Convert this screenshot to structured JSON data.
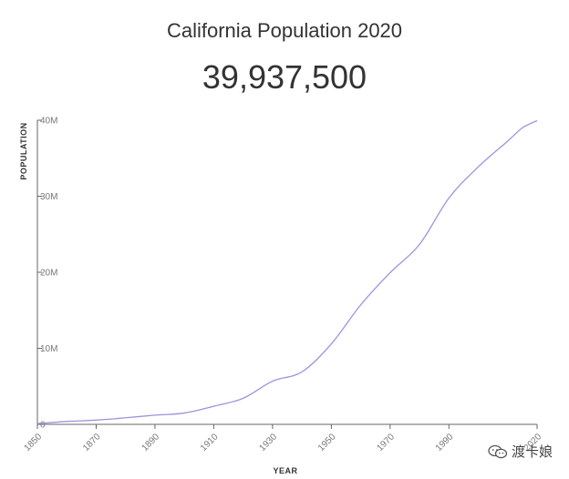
{
  "header": {
    "title": "California Population 2020",
    "value": "39,937,500"
  },
  "watermark": {
    "icon": "wechat-icon",
    "text": "渡卡娘"
  },
  "colors": {
    "line": "#9b93e0",
    "axis": "#666666"
  },
  "chart_data": {
    "type": "line",
    "title": "California Population 2020",
    "xlabel": "YEAR",
    "ylabel": "POPULATION",
    "xlim": [
      1850,
      2020
    ],
    "ylim": [
      0,
      40000000
    ],
    "x_ticks": [
      1850,
      1870,
      1890,
      1910,
      1930,
      1950,
      1970,
      1990,
      2020
    ],
    "x_tick_labels": [
      "1850",
      "1870",
      "1890",
      "1910",
      "1930",
      "1950",
      "1970",
      "1990",
      "2020"
    ],
    "y_ticks": [
      0,
      10000000,
      20000000,
      30000000,
      40000000
    ],
    "y_tick_labels": [
      "0",
      "10M",
      "20M",
      "30M",
      "40M"
    ],
    "grid": false,
    "series": [
      {
        "x": [
          1850,
          1860,
          1870,
          1880,
          1890,
          1900,
          1910,
          1920,
          1930,
          1940,
          1950,
          1960,
          1970,
          1980,
          1990,
          2000,
          2010,
          2015,
          2020
        ],
        "y": [
          93000,
          380000,
          560000,
          865000,
          1210000,
          1490000,
          2380000,
          3430000,
          5680000,
          6900000,
          10590000,
          15720000,
          19950000,
          23670000,
          29760000,
          33870000,
          37250000,
          39000000,
          39937500
        ]
      }
    ]
  }
}
